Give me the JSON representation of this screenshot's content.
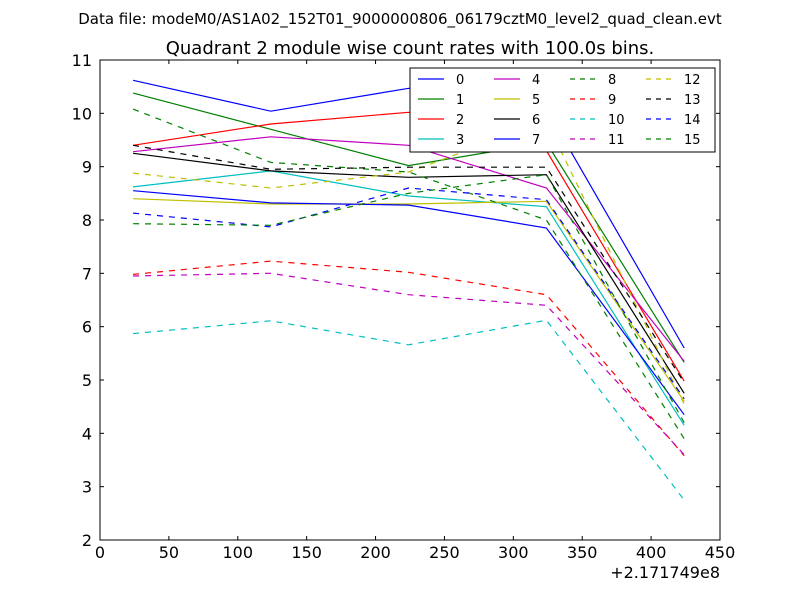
{
  "chart_data": {
    "type": "line",
    "suptitle": "Data file: modeM0/AS1A02_152T01_9000000806_06179cztM0_level2_quad_clean.evt",
    "title": "Quadrant 2 module wise count rates with 100.0s bins.",
    "xlabel": "",
    "ylabel": "",
    "x_offset_label": "+2.171749e8",
    "xlim": [
      0,
      450
    ],
    "ylim": [
      2,
      11
    ],
    "x_ticks": [
      0,
      50,
      100,
      150,
      200,
      250,
      300,
      350,
      400,
      450
    ],
    "y_ticks": [
      2,
      3,
      4,
      5,
      6,
      7,
      8,
      9,
      10,
      11
    ],
    "x_tick_labels": [
      "0",
      "50",
      "100",
      "150",
      "200",
      "250",
      "300",
      "350",
      "400",
      "450"
    ],
    "y_tick_labels": [
      "2",
      "3",
      "4",
      "5",
      "6",
      "7",
      "8",
      "9",
      "10",
      "11"
    ],
    "legend_position": "top-right",
    "legend_columns": 4,
    "x": [
      24,
      124,
      224,
      324,
      424
    ],
    "series": [
      {
        "name": "0",
        "color": "#0000ff",
        "style": "solid",
        "values": [
          10.62,
          10.04,
          10.47,
          10.08,
          5.6
        ]
      },
      {
        "name": "1",
        "color": "#008000",
        "style": "solid",
        "values": [
          10.38,
          9.7,
          9.02,
          9.45,
          5.33
        ]
      },
      {
        "name": "2",
        "color": "#ff0000",
        "style": "solid",
        "values": [
          9.4,
          9.8,
          10.02,
          9.3,
          4.98
        ]
      },
      {
        "name": "3",
        "color": "#00bfbf",
        "style": "solid",
        "values": [
          8.62,
          8.92,
          8.45,
          8.25,
          4.15
        ]
      },
      {
        "name": "4",
        "color": "#bf00bf",
        "style": "solid",
        "values": [
          9.28,
          9.56,
          9.4,
          8.6,
          5.35
        ]
      },
      {
        "name": "5",
        "color": "#bfbf00",
        "style": "solid",
        "values": [
          8.4,
          8.3,
          8.3,
          8.35,
          4.6
        ]
      },
      {
        "name": "6",
        "color": "#000000",
        "style": "solid",
        "values": [
          9.25,
          8.92,
          8.8,
          8.85,
          4.75
        ]
      },
      {
        "name": "7",
        "color": "#0000ff",
        "style": "solid",
        "values": [
          8.55,
          8.32,
          8.28,
          7.85,
          4.35
        ]
      },
      {
        "name": "8",
        "color": "#008000",
        "style": "dashed",
        "values": [
          10.08,
          9.08,
          8.9,
          8.0,
          3.9
        ]
      },
      {
        "name": "9",
        "color": "#ff0000",
        "style": "dashed",
        "values": [
          6.98,
          7.23,
          7.02,
          6.6,
          3.58
        ]
      },
      {
        "name": "10",
        "color": "#00bfbf",
        "style": "dashed",
        "values": [
          5.87,
          6.11,
          5.66,
          6.12,
          2.75
        ]
      },
      {
        "name": "11",
        "color": "#bf00bf",
        "style": "dashed",
        "values": [
          6.95,
          7.0,
          6.6,
          6.4,
          3.6
        ]
      },
      {
        "name": "12",
        "color": "#bfbf00",
        "style": "dashed",
        "values": [
          8.88,
          8.6,
          8.9,
          9.85,
          4.55
        ]
      },
      {
        "name": "13",
        "color": "#000000",
        "style": "dashed",
        "values": [
          9.4,
          8.95,
          8.99,
          8.99,
          4.95
        ]
      },
      {
        "name": "14",
        "color": "#0000ff",
        "style": "dashed",
        "values": [
          8.13,
          7.87,
          8.6,
          8.38,
          4.65
        ]
      },
      {
        "name": "15",
        "color": "#008000",
        "style": "dashed",
        "values": [
          7.93,
          7.9,
          8.5,
          8.85,
          4.2
        ]
      }
    ]
  }
}
